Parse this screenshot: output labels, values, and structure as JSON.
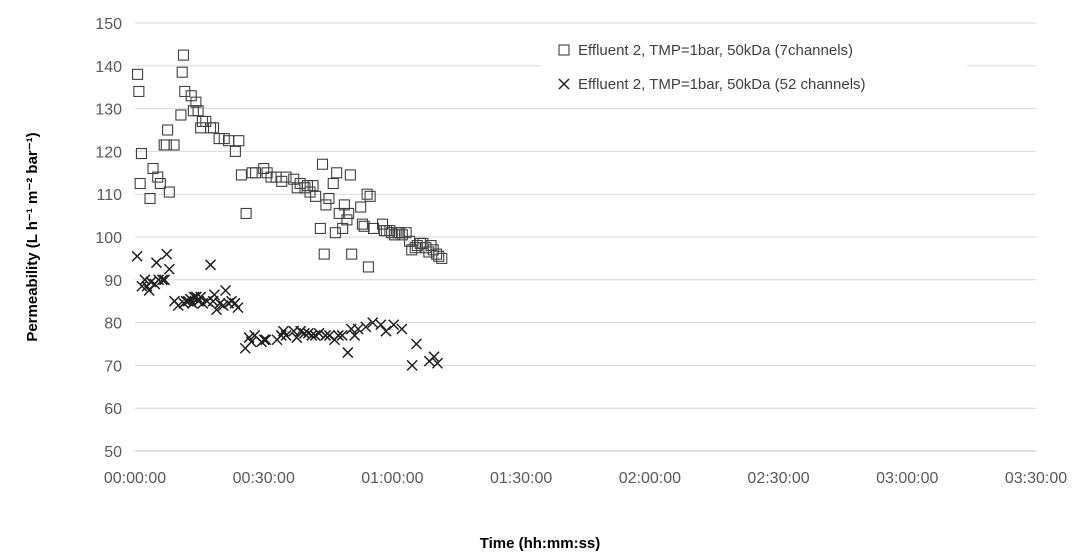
{
  "chart_data": {
    "type": "scatter",
    "title": "",
    "xlabel": "Time (hh:mm:ss)",
    "ylabel": "Permeability (L h⁻¹ m⁻² bar⁻¹)",
    "x_unit": "minutes",
    "xlim": [
      0,
      210
    ],
    "ylim": [
      50,
      150
    ],
    "x_ticks": [
      {
        "value": 0,
        "label": "00:00:00"
      },
      {
        "value": 30,
        "label": "00:30:00"
      },
      {
        "value": 60,
        "label": "01:00:00"
      },
      {
        "value": 90,
        "label": "01:30:00"
      },
      {
        "value": 120,
        "label": "02:00:00"
      },
      {
        "value": 150,
        "label": "02:30:00"
      },
      {
        "value": 180,
        "label": "03:00:00"
      },
      {
        "value": 210,
        "label": "03:30:00"
      }
    ],
    "y_ticks": [
      50,
      60,
      70,
      80,
      90,
      100,
      110,
      120,
      130,
      140,
      150
    ],
    "grid": "horizontal",
    "legend_position": "top-right",
    "series": [
      {
        "name": "Effluent 2, TMP=1bar, 50kDa (7channels)",
        "marker": "square",
        "points": [
          [
            0.6,
            138
          ],
          [
            0.9,
            134
          ],
          [
            1.5,
            119.5
          ],
          [
            1.2,
            112.5
          ],
          [
            3.5,
            109
          ],
          [
            4.2,
            116
          ],
          [
            5.3,
            114
          ],
          [
            5.9,
            112.5
          ],
          [
            6.8,
            121.5
          ],
          [
            7.3,
            121.5
          ],
          [
            7.6,
            125
          ],
          [
            8.0,
            110.5
          ],
          [
            9.1,
            121.5
          ],
          [
            10.7,
            128.5
          ],
          [
            11.0,
            138.5
          ],
          [
            11.3,
            142.5
          ],
          [
            11.6,
            134
          ],
          [
            13.1,
            133
          ],
          [
            13.6,
            129.5
          ],
          [
            14.2,
            131.5
          ],
          [
            14.7,
            129.5
          ],
          [
            15.3,
            125.5
          ],
          [
            15.7,
            127
          ],
          [
            16.5,
            127
          ],
          [
            17.6,
            125.5
          ],
          [
            18.3,
            125.5
          ],
          [
            19.6,
            123
          ],
          [
            20.8,
            123
          ],
          [
            21.8,
            122.5
          ],
          [
            23.4,
            120
          ],
          [
            24.2,
            122.5
          ],
          [
            24.8,
            114.5
          ],
          [
            25.9,
            105.5
          ],
          [
            27.3,
            115
          ],
          [
            28.1,
            115
          ],
          [
            30.0,
            116
          ],
          [
            30.8,
            115
          ],
          [
            31.7,
            114
          ],
          [
            32.9,
            114
          ],
          [
            34.2,
            113
          ],
          [
            35.2,
            114
          ],
          [
            37.0,
            113.5
          ],
          [
            37.8,
            111.5
          ],
          [
            38.5,
            112.5
          ],
          [
            39.6,
            111.5
          ],
          [
            40.2,
            112
          ],
          [
            40.8,
            110.5
          ],
          [
            41.5,
            112
          ],
          [
            42.1,
            109.5
          ],
          [
            43.2,
            102
          ],
          [
            43.7,
            117
          ],
          [
            44.1,
            96
          ],
          [
            44.5,
            107.5
          ],
          [
            45.2,
            109
          ],
          [
            46.2,
            112.5
          ],
          [
            46.7,
            101
          ],
          [
            47.0,
            115
          ],
          [
            47.6,
            105.5
          ],
          [
            48.4,
            102
          ],
          [
            48.8,
            107.5
          ],
          [
            49.4,
            104
          ],
          [
            49.8,
            105.5
          ],
          [
            50.2,
            114.5
          ],
          [
            50.5,
            96
          ],
          [
            52.6,
            107
          ],
          [
            53.0,
            103
          ],
          [
            53.4,
            102.5
          ],
          [
            54.1,
            110
          ],
          [
            54.4,
            93
          ],
          [
            54.8,
            109.5
          ],
          [
            55.6,
            102
          ],
          [
            57.7,
            103
          ],
          [
            58.1,
            101.5
          ],
          [
            58.6,
            101.5
          ],
          [
            59.4,
            101.5
          ],
          [
            59.8,
            101
          ],
          [
            60.5,
            100.5
          ],
          [
            61.3,
            101
          ],
          [
            61.6,
            101
          ],
          [
            62.3,
            100.5
          ],
          [
            63.2,
            101
          ],
          [
            64.0,
            99
          ],
          [
            64.5,
            97
          ],
          [
            65.3,
            97.5
          ],
          [
            65.8,
            98
          ],
          [
            66.5,
            98.5
          ],
          [
            67.1,
            98.5
          ],
          [
            67.8,
            97.5
          ],
          [
            68.5,
            96.5
          ],
          [
            69.0,
            98
          ],
          [
            69.5,
            97
          ],
          [
            70.3,
            96
          ],
          [
            70.8,
            95.5
          ],
          [
            71.5,
            95
          ]
        ]
      },
      {
        "name": "Effluent 2, TMP=1bar, 50kDa (52 channels)",
        "marker": "x",
        "points": [
          [
            0.5,
            95.5
          ],
          [
            1.6,
            88.5
          ],
          [
            2.3,
            90
          ],
          [
            2.8,
            88.5
          ],
          [
            3.3,
            87.5
          ],
          [
            3.7,
            89.5
          ],
          [
            4.6,
            89
          ],
          [
            5.0,
            94
          ],
          [
            5.5,
            90
          ],
          [
            6.4,
            90
          ],
          [
            6.9,
            90
          ],
          [
            7.4,
            96
          ],
          [
            8.0,
            92.5
          ],
          [
            9.2,
            85
          ],
          [
            10.1,
            84
          ],
          [
            11.4,
            84.5
          ],
          [
            11.9,
            85
          ],
          [
            12.4,
            85
          ],
          [
            12.9,
            85.5
          ],
          [
            13.4,
            84.5
          ],
          [
            13.8,
            86
          ],
          [
            14.3,
            86
          ],
          [
            14.8,
            85
          ],
          [
            15.3,
            86
          ],
          [
            15.8,
            84.5
          ],
          [
            16.8,
            85
          ],
          [
            17.6,
            93.5
          ],
          [
            18.2,
            85
          ],
          [
            18.5,
            86.5
          ],
          [
            19.0,
            83
          ],
          [
            19.8,
            84.5
          ],
          [
            20.6,
            84
          ],
          [
            21.1,
            87.5
          ],
          [
            21.8,
            84.5
          ],
          [
            22.5,
            85
          ],
          [
            23.3,
            84.5
          ],
          [
            24.0,
            83.5
          ],
          [
            25.7,
            74
          ],
          [
            26.6,
            76.5
          ],
          [
            27.1,
            75.5
          ],
          [
            27.9,
            77
          ],
          [
            29.5,
            75.5
          ],
          [
            30.1,
            76
          ],
          [
            30.5,
            76
          ],
          [
            33.1,
            76
          ],
          [
            34.1,
            77
          ],
          [
            34.6,
            78
          ],
          [
            35.2,
            77
          ],
          [
            37.0,
            78
          ],
          [
            37.7,
            76.5
          ],
          [
            38.6,
            78
          ],
          [
            39.5,
            77.5
          ],
          [
            40.4,
            77.5
          ],
          [
            41.2,
            77
          ],
          [
            42.0,
            77
          ],
          [
            42.9,
            77.5
          ],
          [
            44.4,
            77
          ],
          [
            45.3,
            77
          ],
          [
            46.5,
            76
          ],
          [
            47.4,
            77
          ],
          [
            48.3,
            77
          ],
          [
            49.6,
            73
          ],
          [
            50.4,
            78.5
          ],
          [
            51.2,
            77
          ],
          [
            52.0,
            78.5
          ],
          [
            53.8,
            79
          ],
          [
            55.4,
            80
          ],
          [
            57.3,
            79.5
          ],
          [
            58.5,
            78
          ],
          [
            60.3,
            79.5
          ],
          [
            62.2,
            78.5
          ],
          [
            64.6,
            70
          ],
          [
            65.6,
            75
          ],
          [
            68.6,
            71
          ],
          [
            69.7,
            72
          ],
          [
            70.5,
            70.5
          ]
        ]
      }
    ]
  }
}
